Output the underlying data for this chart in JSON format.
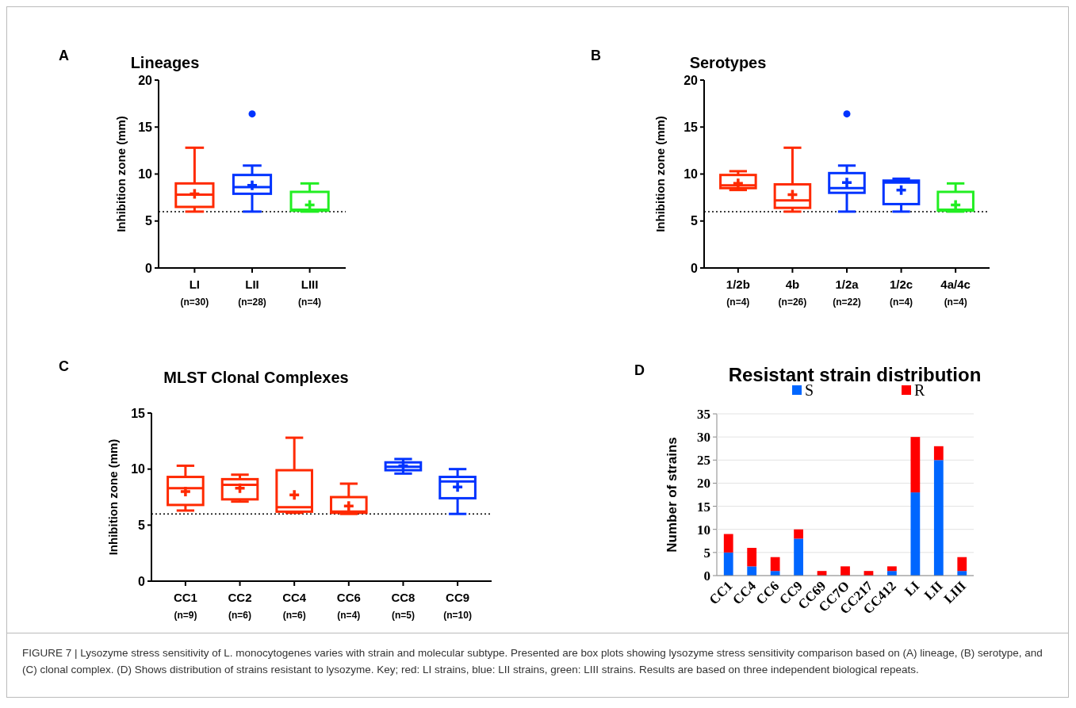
{
  "chart_data": [
    {
      "type": "box",
      "title": "Lineages",
      "ylabel": "Inhibition zone (mm)",
      "annotations": [
        "A"
      ],
      "categories": [
        "LI (n=30)",
        "LII (n=28)",
        "LIII (n=4)"
      ],
      "colors": [
        "#ff2a00",
        "#0033ff",
        "#22ee22"
      ],
      "ylim": [
        0,
        20
      ],
      "yticks": [
        0,
        5,
        10,
        15,
        20
      ],
      "boxes": [
        {
          "low": 6,
          "q1": 6.5,
          "median": 7.8,
          "q3": 9,
          "high": 12.8,
          "mean": 7.9
        },
        {
          "low": 6,
          "q1": 7.9,
          "median": 8.6,
          "q3": 9.9,
          "high": 10.9,
          "mean": 8.8,
          "outliers": [
            16.4
          ]
        },
        {
          "low": 6,
          "q1": 6.1,
          "median": 6.2,
          "q3": 8.1,
          "high": 9,
          "mean": 6.7
        }
      ],
      "ref_lines": [
        {
          "axis": "y",
          "value": 6,
          "color": "#000000",
          "line_style": "dotted"
        }
      ]
    },
    {
      "type": "box",
      "title": "Serotypes",
      "ylabel": "Inhibition zone (mm)",
      "annotations": [
        "B"
      ],
      "categories": [
        "1/2b (n=4)",
        "4b (n=26)",
        "1/2a (n=22)",
        "1/2c (n=4)",
        "4a/4c (n=4)"
      ],
      "colors": [
        "#ff2a00",
        "#ff2a00",
        "#0033ff",
        "#0033ff",
        "#22ee22"
      ],
      "ylim": [
        0,
        20
      ],
      "yticks": [
        0,
        5,
        10,
        15,
        20
      ],
      "boxes": [
        {
          "low": 8.3,
          "q1": 8.5,
          "median": 8.8,
          "q3": 9.9,
          "high": 10.3,
          "mean": 9
        },
        {
          "low": 6,
          "q1": 6.4,
          "median": 7.2,
          "q3": 8.9,
          "high": 12.8,
          "mean": 7.8
        },
        {
          "low": 6,
          "q1": 8,
          "median": 8.5,
          "q3": 10.1,
          "high": 10.9,
          "mean": 9.1,
          "outliers": [
            16.4
          ]
        },
        {
          "low": 6,
          "q1": 6.8,
          "median": 9.1,
          "q3": 9.3,
          "high": 9.5,
          "mean": 8.3
        },
        {
          "low": 6,
          "q1": 6.1,
          "median": 6.2,
          "q3": 8.1,
          "high": 9,
          "mean": 6.7
        }
      ],
      "ref_lines": [
        {
          "axis": "y",
          "value": 6,
          "color": "#000000",
          "line_style": "dotted"
        }
      ]
    },
    {
      "type": "box",
      "title": "MLST Clonal Complexes",
      "ylabel": "Inhibition zone (mm)",
      "annotations": [
        "C"
      ],
      "categories": [
        "CC1 (n=9)",
        "CC2 (n=6)",
        "CC4 (n=6)",
        "CC6 (n=4)",
        "CC8 (n=5)",
        "CC9 (n=10)"
      ],
      "colors": [
        "#ff2a00",
        "#ff2a00",
        "#ff2a00",
        "#ff2a00",
        "#0033ff",
        "#0033ff"
      ],
      "ylim": [
        0,
        15
      ],
      "yticks": [
        0,
        5,
        10,
        15
      ],
      "boxes": [
        {
          "low": 6.3,
          "q1": 6.8,
          "median": 8.3,
          "q3": 9.3,
          "high": 10.3,
          "mean": 8
        },
        {
          "low": 7.1,
          "q1": 7.3,
          "median": 8.6,
          "q3": 9.1,
          "high": 9.5,
          "mean": 8.3
        },
        {
          "low": 6.1,
          "q1": 6.2,
          "median": 6.6,
          "q3": 9.9,
          "high": 12.8,
          "mean": 7.7
        },
        {
          "low": 6,
          "q1": 6.1,
          "median": 6.2,
          "q3": 7.5,
          "high": 8.7,
          "mean": 6.7
        },
        {
          "low": 9.6,
          "q1": 9.9,
          "median": 10.2,
          "q3": 10.6,
          "high": 10.9,
          "mean": 10.3
        },
        {
          "low": 6,
          "q1": 7.4,
          "median": 8.9,
          "q3": 9.3,
          "high": 10,
          "mean": 8.4
        }
      ],
      "ref_lines": [
        {
          "axis": "y",
          "value": 6,
          "color": "#000000",
          "line_style": "dotted"
        }
      ]
    },
    {
      "type": "bar",
      "stacked": true,
      "title": "Resistant strain distribution",
      "ylabel": "Number of strains",
      "annotations": [
        "D",
        "FIGURE 7 | Lysozyme stress sensitivity of L. monocytogenes varies with strain and molecular subtype. Presented are box plots showing lysozyme stress sensitivity comparison based on (A) lineage, (B) serotype, and (C) clonal complex. (D) Shows distribution of strains resistant to lysozyme. Key; red: LI strains, blue: LII strains, green: LIII strains. Results are based on three independent biological repeats."
      ],
      "categories": [
        "CC1",
        "CC4",
        "CC6",
        "CC9",
        "CC69",
        "CC7O",
        "CC217",
        "CC412",
        "LI",
        "LII",
        "LIII"
      ],
      "ylim": [
        0,
        35
      ],
      "yticks": [
        0,
        5,
        10,
        15,
        20,
        25,
        30,
        35
      ],
      "grid": "y",
      "legend": "top",
      "series": [
        {
          "name": "S",
          "color": "#0066ff",
          "values": [
            5,
            2,
            1,
            8,
            0,
            0,
            0,
            1,
            18,
            25,
            1
          ]
        },
        {
          "name": "R",
          "color": "#ff0000",
          "values": [
            4,
            4,
            3,
            2,
            1,
            2,
            1,
            1,
            12,
            3,
            3
          ]
        }
      ]
    }
  ]
}
